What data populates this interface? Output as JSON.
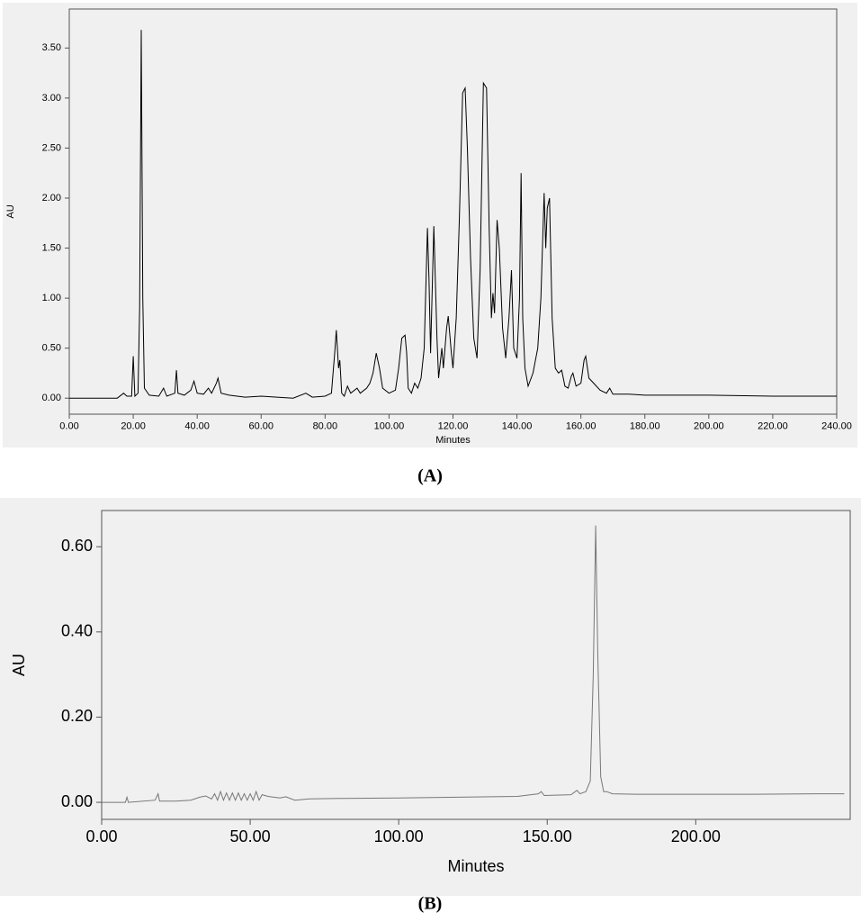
{
  "chart_data": [
    {
      "type": "line",
      "caption": "(A)",
      "xlabel": "Minutes",
      "ylabel": "AU",
      "color": "#000000",
      "xlim": [
        0,
        240
      ],
      "ylim": [
        -0.16,
        3.89
      ],
      "xticks": [
        {
          "value": 0,
          "label": "0.00"
        },
        {
          "value": 20,
          "label": "20.00"
        },
        {
          "value": 40,
          "label": "40.00"
        },
        {
          "value": 60,
          "label": "60.00"
        },
        {
          "value": 80,
          "label": "80.00"
        },
        {
          "value": 100,
          "label": "100.00"
        },
        {
          "value": 120,
          "label": "120.00"
        },
        {
          "value": 140,
          "label": "140.00"
        },
        {
          "value": 160,
          "label": "160.00"
        },
        {
          "value": 180,
          "label": "180.00"
        },
        {
          "value": 200,
          "label": "200.00"
        },
        {
          "value": 220,
          "label": "220.00"
        },
        {
          "value": 240,
          "label": "240.00"
        }
      ],
      "yticks": [
        {
          "value": 0,
          "label": "0.00"
        },
        {
          "value": 0.5,
          "label": "0.50"
        },
        {
          "value": 1,
          "label": "1.00"
        },
        {
          "value": 1.5,
          "label": "1.50"
        },
        {
          "value": 2,
          "label": "2.00"
        },
        {
          "value": 2.5,
          "label": "2.50"
        },
        {
          "value": 3,
          "label": "3.00"
        },
        {
          "value": 3.5,
          "label": "3.50"
        }
      ],
      "x": [
        0,
        15,
        17,
        18,
        19.5,
        20,
        20.5,
        21.5,
        22,
        22.5,
        23,
        23.5,
        25,
        28,
        29.5,
        30.5,
        33,
        33.5,
        34,
        36,
        38,
        39,
        40,
        42,
        43.5,
        44.5,
        46,
        46.5,
        47.5,
        50,
        55,
        60,
        65,
        70,
        74,
        76,
        80,
        82,
        83,
        83.5,
        84.2,
        84.6,
        85.2,
        86,
        87,
        88,
        90,
        91,
        93,
        94,
        95,
        96,
        97,
        98,
        100,
        102,
        103,
        104,
        105,
        105.5,
        106,
        107,
        108,
        109,
        110,
        111,
        112,
        112.5,
        113,
        114,
        115,
        115.5,
        116,
        116.5,
        117,
        118,
        118.5,
        119.5,
        120,
        121,
        122,
        123,
        123.8,
        124.5,
        125.5,
        126.5,
        127.5,
        128.5,
        129.5,
        130.5,
        131.3,
        132,
        132.5,
        133,
        133.8,
        134.5,
        135.5,
        136.5,
        137.5,
        138.3,
        139,
        140,
        140.8,
        141.3,
        141.8,
        142.5,
        143.5,
        145,
        146.5,
        147.5,
        148.5,
        149,
        149.5,
        150.2,
        151,
        152,
        153,
        154,
        155,
        156,
        157,
        157.5,
        158.5,
        160,
        161,
        161.5,
        162.5,
        164,
        166,
        168,
        169,
        170,
        175,
        180,
        200,
        220,
        240
      ],
      "values": [
        0,
        0,
        0.05,
        0.02,
        0.02,
        0.42,
        0.02,
        0.05,
        0.9,
        3.68,
        1.0,
        0.1,
        0.03,
        0.02,
        0.1,
        0.02,
        0.05,
        0.28,
        0.05,
        0.03,
        0.08,
        0.17,
        0.05,
        0.04,
        0.1,
        0.05,
        0.15,
        0.2,
        0.05,
        0.03,
        0.01,
        0.02,
        0.01,
        0,
        0.05,
        0.01,
        0.02,
        0.05,
        0.45,
        0.68,
        0.3,
        0.38,
        0.05,
        0.02,
        0.12,
        0.05,
        0.1,
        0.05,
        0.1,
        0.15,
        0.25,
        0.45,
        0.3,
        0.1,
        0.05,
        0.08,
        0.3,
        0.6,
        0.63,
        0.45,
        0.1,
        0.05,
        0.15,
        0.1,
        0.2,
        0.5,
        1.7,
        1.2,
        0.45,
        1.72,
        0.6,
        0.2,
        0.35,
        0.5,
        0.3,
        0.7,
        0.82,
        0.45,
        0.3,
        0.8,
        1.8,
        3.05,
        3.1,
        2.5,
        1.4,
        0.6,
        0.4,
        1.3,
        3.15,
        3.1,
        1.7,
        0.8,
        1.05,
        0.85,
        1.78,
        1.5,
        0.7,
        0.4,
        0.8,
        1.28,
        0.5,
        0.4,
        1.0,
        2.25,
        0.8,
        0.3,
        0.12,
        0.25,
        0.5,
        1.0,
        2.05,
        1.5,
        1.9,
        2.0,
        0.8,
        0.3,
        0.25,
        0.28,
        0.12,
        0.1,
        0.22,
        0.25,
        0.12,
        0.15,
        0.38,
        0.42,
        0.2,
        0.15,
        0.08,
        0.05,
        0.1,
        0.04,
        0.04,
        0.03,
        0.03,
        0.02,
        0.02
      ]
    },
    {
      "type": "line",
      "caption": "(B)",
      "xlabel": "Minutes",
      "ylabel": "AU",
      "color": "#777777",
      "xlim": [
        0,
        252
      ],
      "ylim": [
        -0.04,
        0.685
      ],
      "xticks": [
        {
          "value": 0,
          "label": "0.00"
        },
        {
          "value": 50,
          "label": "50.00"
        },
        {
          "value": 100,
          "label": "100.00"
        },
        {
          "value": 150,
          "label": "150.00"
        },
        {
          "value": 200,
          "label": "200.00"
        }
      ],
      "yticks": [
        {
          "value": 0,
          "label": "0.00"
        },
        {
          "value": 0.2,
          "label": "0.20"
        },
        {
          "value": 0.4,
          "label": "0.40"
        },
        {
          "value": 0.6,
          "label": "0.60"
        }
      ],
      "x": [
        0,
        8,
        8.5,
        9,
        18,
        19,
        19.5,
        25,
        30,
        33,
        35,
        37,
        38,
        39,
        40,
        41,
        42,
        43,
        44,
        45,
        46,
        47,
        48,
        49,
        50,
        51,
        52,
        53,
        54,
        56,
        58,
        60,
        62,
        65,
        70,
        80,
        100,
        120,
        140,
        147,
        148,
        149,
        158,
        160,
        161,
        163,
        164.5,
        165.5,
        166.3,
        167,
        168,
        169,
        170,
        172,
        180,
        200,
        220,
        240,
        250
      ],
      "values": [
        0,
        0,
        0.012,
        0,
        0.005,
        0.02,
        0.003,
        0.003,
        0.005,
        0.012,
        0.015,
        0.008,
        0.02,
        0.005,
        0.025,
        0.005,
        0.022,
        0.005,
        0.022,
        0.005,
        0.022,
        0.005,
        0.02,
        0.005,
        0.02,
        0.005,
        0.025,
        0.005,
        0.018,
        0.014,
        0.012,
        0.01,
        0.013,
        0.005,
        0.008,
        0.009,
        0.01,
        0.012,
        0.014,
        0.02,
        0.025,
        0.016,
        0.018,
        0.028,
        0.02,
        0.025,
        0.05,
        0.3,
        0.65,
        0.35,
        0.06,
        0.025,
        0.025,
        0.02,
        0.019,
        0.019,
        0.019,
        0.02,
        0.02
      ]
    }
  ]
}
